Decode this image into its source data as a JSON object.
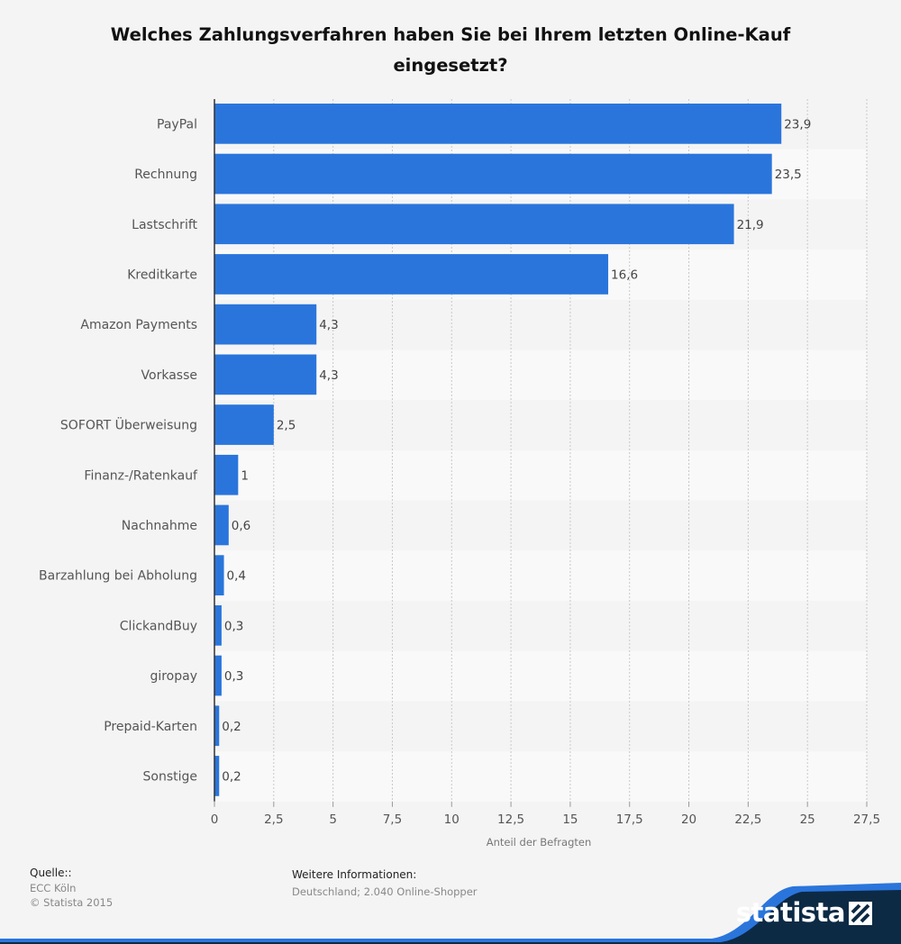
{
  "title": "Welches Zahlungsverfahren haben Sie bei Ihrem letzten Online-Kauf eingesetzt?",
  "chart_data": {
    "type": "bar",
    "orientation": "horizontal",
    "title": "Welches Zahlungsverfahren haben Sie bei Ihrem letzten Online-Kauf eingesetzt?",
    "xlabel": "Anteil der Befragten",
    "ylabel": "",
    "categories": [
      "PayPal",
      "Rechnung",
      "Lastschrift",
      "Kreditkarte",
      "Amazon Payments",
      "Vorkasse",
      "SOFORT Überweisung",
      "Finanz-/Ratenkauf",
      "Nachnahme",
      "Barzahlung bei Abholung",
      "ClickandBuy",
      "giropay",
      "Prepaid-Karten",
      "Sonstige"
    ],
    "values": [
      23.9,
      23.5,
      21.9,
      16.6,
      4.3,
      4.3,
      2.5,
      1,
      0.6,
      0.4,
      0.3,
      0.3,
      0.2,
      0.2
    ],
    "value_labels": [
      "23,9",
      "23,5",
      "21,9",
      "16,6",
      "4,3",
      "4,3",
      "2,5",
      "1",
      "0,6",
      "0,4",
      "0,3",
      "0,3",
      "0,2",
      "0,2"
    ],
    "xlim": [
      0,
      27.5
    ],
    "xticks": [
      0,
      2.5,
      5,
      7.5,
      10,
      12.5,
      15,
      17.5,
      20,
      22.5,
      25,
      27.5
    ],
    "xtick_labels": [
      "0",
      "2,5",
      "5",
      "7,5",
      "10",
      "12,5",
      "15",
      "17,5",
      "20",
      "22,5",
      "25",
      "27,5"
    ],
    "grid": true,
    "bar_color": "#2a75dc"
  },
  "source": {
    "heading": "Quelle::",
    "lines": [
      "ECC Köln",
      "© Statista 2015"
    ]
  },
  "info": {
    "heading": "Weitere Informationen:",
    "text": "Deutschland; 2.040 Online-Shopper"
  },
  "brand": {
    "name": "statista",
    "color": "#0d2a45",
    "accent": "#2a75dc"
  }
}
